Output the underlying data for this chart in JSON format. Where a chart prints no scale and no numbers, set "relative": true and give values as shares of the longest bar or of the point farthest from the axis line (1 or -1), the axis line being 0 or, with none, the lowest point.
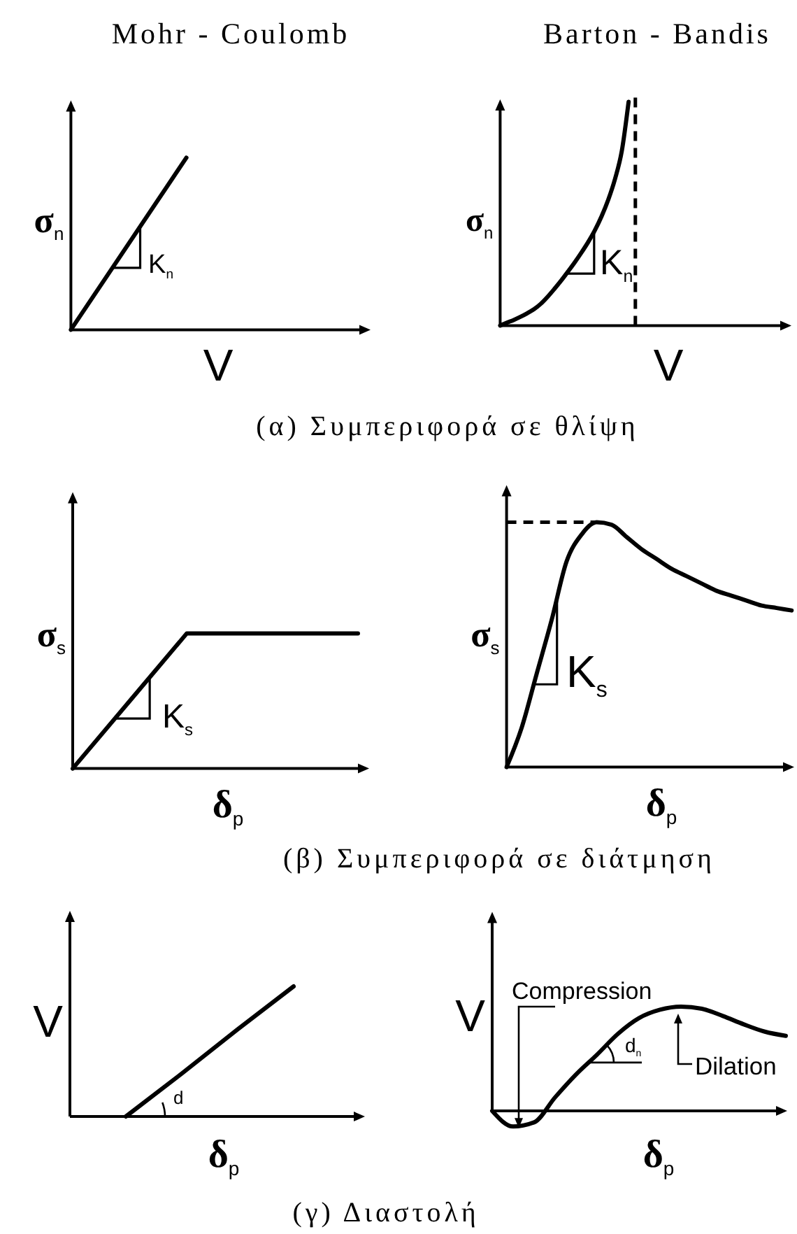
{
  "chart_data": [
    {
      "type": "line",
      "title": "Mohr - Coulomb",
      "xlabel": "V",
      "ylabel": "σ$_{n}$",
      "relative": true,
      "categories": [
        null,
        null,
        null,
        null,
        null,
        null
      ],
      "values": [
        0,
        0.5,
        1,
        null,
        null,
        null
      ],
      "color": "#000000",
      "annotations": [
        "K$_{n}$",
        "(α) Συμπεριφορά σε θλίψη"
      ]
    },
    {
      "type": "line",
      "title": "Barton - Bandis",
      "xlabel": "V",
      "ylabel": "σ$_{n}$",
      "relative": true,
      "categories": [
        null,
        null,
        null,
        null,
        null,
        null,
        null,
        null,
        null,
        null,
        null,
        null,
        null,
        null,
        null,
        null,
        null,
        null,
        null,
        null,
        null
      ],
      "values": [
        0,
        0.013,
        0.025,
        0.039,
        0.055,
        0.073,
        0.097,
        0.128,
        0.163,
        0.2,
        0.24,
        0.281,
        0.325,
        0.372,
        0.425,
        0.488,
        0.563,
        0.656,
        0.781,
        1,
        null
      ],
      "color": "#000000",
      "ref_lines": [
        {
          "axis": "x",
          "line_style": "dashed"
        }
      ],
      "annotations": [
        "K$_{n}$"
      ]
    },
    {
      "type": "line",
      "xlabel": "δ$_{p}$",
      "ylabel": "σ$_{s}$",
      "relative": true,
      "categories": [
        null,
        null,
        null,
        null,
        null,
        null
      ],
      "values": [
        0,
        0.5,
        1,
        1,
        1,
        1
      ],
      "color": "#000000",
      "annotations": [
        "K$_{s}$",
        "(β) Συμπεριφορά σε διάτμηση"
      ]
    },
    {
      "type": "line",
      "xlabel": "δ$_{p}$",
      "ylabel": "σ$_{s}$",
      "relative": true,
      "categories": [
        null,
        null,
        null,
        null,
        null,
        null,
        null,
        null,
        null,
        null,
        null,
        null,
        null,
        null,
        null,
        null,
        null,
        null,
        null,
        null
      ],
      "values": [
        0,
        0.16,
        0.38,
        0.6,
        0.84,
        0.95,
        1,
        0.99,
        0.94,
        0.89,
        0.85,
        0.81,
        0.78,
        0.75,
        0.72,
        0.7,
        0.68,
        0.66,
        0.65,
        0.64
      ],
      "color": "#000000",
      "ref_lines": [
        {
          "axis": "y",
          "value": 1,
          "line_style": "dashed"
        }
      ],
      "annotations": [
        "K$_{s}$"
      ]
    },
    {
      "type": "line",
      "xlabel": "δ$_{p}$",
      "ylabel": "V",
      "relative": true,
      "categories": [
        null,
        null,
        null,
        null,
        null,
        null
      ],
      "values": [
        null,
        0,
        0.33,
        0.67,
        1,
        null
      ],
      "color": "#000000",
      "annotations": [
        "d",
        "(γ) Διαστολή"
      ]
    },
    {
      "type": "line",
      "xlabel": "δ$_{p}$",
      "ylabel": "V",
      "relative": true,
      "categories": [
        null,
        null,
        null,
        null,
        null,
        null,
        null,
        null,
        null,
        null,
        null,
        null,
        null,
        null,
        null
      ],
      "values": [
        0,
        -0.15,
        -0.11,
        0.13,
        0.35,
        0.54,
        0.74,
        0.89,
        0.97,
        1,
        0.98,
        0.91,
        0.83,
        0.76,
        0.72
      ],
      "color": "#000000",
      "annotations": [
        "Compression",
        "d$_{n}$",
        "Dilation"
      ]
    }
  ]
}
